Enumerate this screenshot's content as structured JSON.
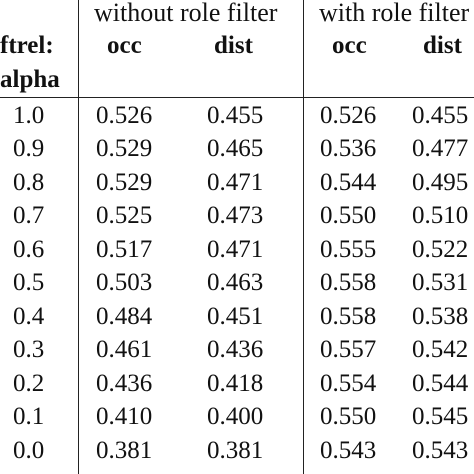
{
  "header": {
    "group_without": "without role filter",
    "group_with": "with role filter",
    "row_label_line1": "ftrel:",
    "row_label_line2": "alpha",
    "col_occ_without": "occ",
    "col_dist_without": "dist",
    "col_occ_with": "occ",
    "col_dist_with": "dist"
  },
  "rows": [
    {
      "alpha": "1.0",
      "occ_without": "0.526",
      "dist_without": "0.455",
      "occ_with": "0.526",
      "dist_with": "0.455"
    },
    {
      "alpha": "0.9",
      "occ_without": "0.529",
      "dist_without": "0.465",
      "occ_with": "0.536",
      "dist_with": "0.477"
    },
    {
      "alpha": "0.8",
      "occ_without": "0.529",
      "dist_without": "0.471",
      "occ_with": "0.544",
      "dist_with": "0.495"
    },
    {
      "alpha": "0.7",
      "occ_without": "0.525",
      "dist_without": "0.473",
      "occ_with": "0.550",
      "dist_with": "0.510"
    },
    {
      "alpha": "0.6",
      "occ_without": "0.517",
      "dist_without": "0.471",
      "occ_with": "0.555",
      "dist_with": "0.522"
    },
    {
      "alpha": "0.5",
      "occ_without": "0.503",
      "dist_without": "0.463",
      "occ_with": "0.558",
      "dist_with": "0.531"
    },
    {
      "alpha": "0.4",
      "occ_without": "0.484",
      "dist_without": "0.451",
      "occ_with": "0.558",
      "dist_with": "0.538"
    },
    {
      "alpha": "0.3",
      "occ_without": "0.461",
      "dist_without": "0.436",
      "occ_with": "0.557",
      "dist_with": "0.542"
    },
    {
      "alpha": "0.2",
      "occ_without": "0.436",
      "dist_without": "0.418",
      "occ_with": "0.554",
      "dist_with": "0.544"
    },
    {
      "alpha": "0.1",
      "occ_without": "0.410",
      "dist_without": "0.400",
      "occ_with": "0.550",
      "dist_with": "0.545"
    },
    {
      "alpha": "0.0",
      "occ_without": "0.381",
      "dist_without": "0.381",
      "occ_with": "0.543",
      "dist_with": "0.543"
    }
  ]
}
